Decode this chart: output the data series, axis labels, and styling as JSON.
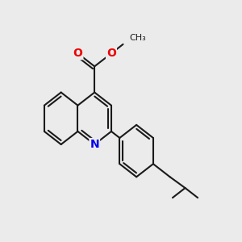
{
  "bg_color": "#ebebeb",
  "bond_color": "#1a1a1a",
  "bond_width": 1.5,
  "atom_colors": {
    "N": "#0000ee",
    "O": "#ee0000",
    "C": "#1a1a1a"
  },
  "font_size": 10,
  "figsize": [
    3.0,
    3.0
  ],
  "dpi": 100
}
